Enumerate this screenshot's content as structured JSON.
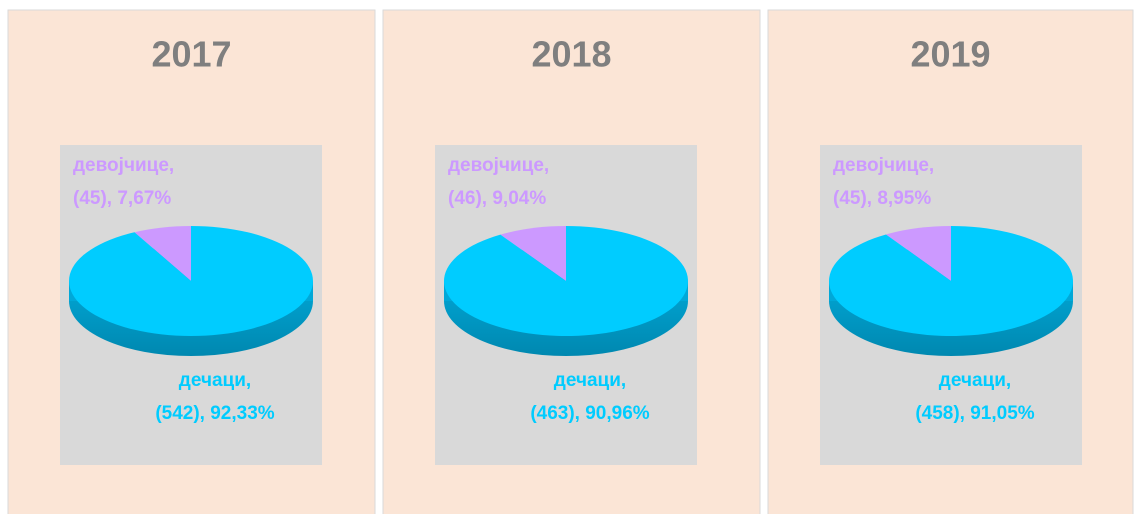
{
  "chart_data": [
    {
      "type": "pie",
      "title": "2017",
      "categories": [
        "девојчице,",
        "дечаци,"
      ],
      "values": [
        45,
        542
      ],
      "value_labels": [
        "(45), 7,67%",
        "(542), 92,33%"
      ],
      "colors": [
        "#cc99ff",
        "#00ccff"
      ]
    },
    {
      "type": "pie",
      "title": "2018",
      "categories": [
        "девојчице,",
        "дечаци,"
      ],
      "values": [
        46,
        463
      ],
      "value_labels": [
        "(46), 9,04%",
        "(463), 90,96%"
      ],
      "colors": [
        "#cc99ff",
        "#00ccff"
      ]
    },
    {
      "type": "pie",
      "title": "2019",
      "categories": [
        "девојчице,",
        "дечаци,"
      ],
      "values": [
        45,
        458
      ],
      "value_labels": [
        "(45), 8,95%",
        "(458), 91,05%"
      ],
      "colors": [
        "#cc99ff",
        "#00ccff"
      ]
    }
  ]
}
